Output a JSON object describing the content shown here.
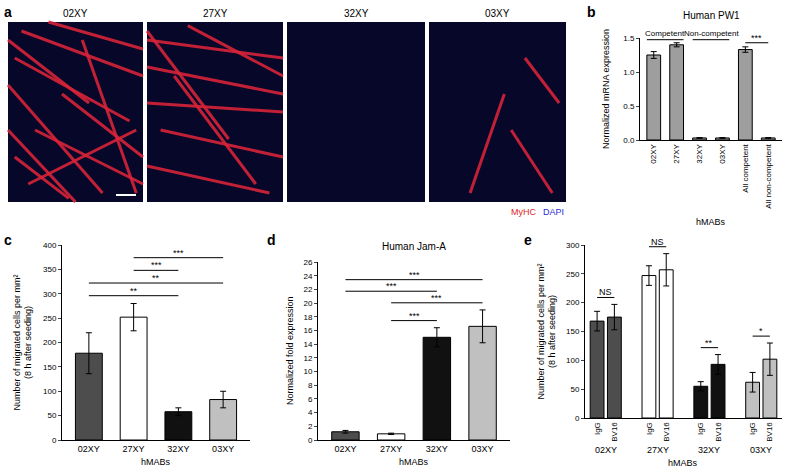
{
  "image_panel": {
    "panel": "a",
    "type": "image",
    "labels": [
      "02XY",
      "27XY",
      "32XY",
      "03XY"
    ],
    "stains": [
      {
        "text": "MyHC",
        "color": "#e02424"
      },
      {
        "text": "DAPI",
        "color": "#2b2bd6"
      }
    ]
  },
  "chart_data": [
    {
      "panel": "b",
      "type": "bar",
      "title": "Human PW1",
      "x_label": "hMABs",
      "y_label": [
        "Normalized mRNA expression"
      ],
      "categories": [
        "02XY",
        "27XY",
        "32XY",
        "03XY",
        "All competent",
        "All non-competent"
      ],
      "values": [
        1.25,
        1.4,
        0.03,
        0.03,
        1.33,
        0.03
      ],
      "errors": [
        0.05,
        0.03,
        0.005,
        0.005,
        0.04,
        0.005
      ],
      "color": "#9e9e9e",
      "ylim": [
        0,
        1.5
      ],
      "yticks": [
        {
          "value": 0,
          "label": "0.0"
        },
        {
          "value": 0.5,
          "label": "0.5"
        },
        {
          "value": 1,
          "label": "1.0"
        },
        {
          "value": 1.5,
          "label": "1.5"
        }
      ],
      "brackets": [
        {
          "from": "02XY",
          "to": "27XY",
          "label": "Competent"
        },
        {
          "from": "32XY",
          "to": "03XY",
          "label": "Non-competent"
        }
      ],
      "significance": [
        {
          "from": "All competent",
          "to": "All non-competent",
          "label": "***"
        }
      ]
    },
    {
      "panel": "c",
      "type": "bar",
      "x_label": "hMABs",
      "y_label": [
        "Number of migrated cells per mm²",
        "(8 h after seeding)"
      ],
      "categories": [
        "02XY",
        "27XY",
        "32XY",
        "03XY"
      ],
      "values": [
        178,
        252,
        58,
        83
      ],
      "errors": [
        42,
        28,
        8,
        17
      ],
      "colors": [
        "#4d4d4d",
        "#ffffff",
        "#111111",
        "#c0c0c0"
      ],
      "ylim": [
        0,
        400
      ],
      "yticks": [
        0,
        50,
        100,
        150,
        200,
        250,
        300,
        350,
        400
      ],
      "significance": [
        {
          "from": "27XY",
          "to": "03XY",
          "label": "***"
        },
        {
          "from": "27XY",
          "to": "32XY",
          "label": "***"
        },
        {
          "from": "02XY",
          "to": "03XY",
          "label": "**"
        },
        {
          "from": "02XY",
          "to": "32XY",
          "label": "**"
        }
      ]
    },
    {
      "panel": "d",
      "type": "bar",
      "title": "Human Jam-A",
      "x_label": "hMABs",
      "y_label": [
        "Normalized fold expression"
      ],
      "categories": [
        "02XY",
        "27XY",
        "32XY",
        "03XY"
      ],
      "values": [
        1.2,
        0.9,
        15,
        16.6
      ],
      "errors": [
        0.2,
        0.1,
        1.4,
        2.4
      ],
      "colors": [
        "#4d4d4d",
        "#ffffff",
        "#111111",
        "#c0c0c0"
      ],
      "ylim": [
        0,
        26
      ],
      "yticks": [
        0,
        2,
        4,
        6,
        8,
        10,
        12,
        14,
        16,
        18,
        20,
        22,
        24,
        26
      ],
      "significance": [
        {
          "from": "02XY",
          "to": "03XY",
          "label": "***"
        },
        {
          "from": "02XY",
          "to": "32XY",
          "label": "***"
        },
        {
          "from": "27XY",
          "to": "03XY",
          "label": "***"
        },
        {
          "from": "27XY",
          "to": "32XY",
          "label": "***"
        }
      ]
    },
    {
      "panel": "e",
      "type": "grouped_bar",
      "x_label": "hMABs",
      "y_label": [
        "Number of migrated cells per mm²",
        "(8 h after seeding)"
      ],
      "categories": [
        "02XY",
        "27XY",
        "32XY",
        "03XY"
      ],
      "series": [
        {
          "name": "IgG",
          "values": [
            168,
            247,
            55,
            62
          ],
          "errors": [
            17,
            17,
            8,
            17
          ]
        },
        {
          "name": "BV16",
          "values": [
            175,
            257,
            93,
            102
          ],
          "errors": [
            22,
            28,
            17,
            28
          ]
        }
      ],
      "colors": [
        "#4d4d4d",
        "#ffffff",
        "#111111",
        "#c0c0c0"
      ],
      "ylim": [
        0,
        300
      ],
      "yticks": [
        0,
        50,
        100,
        150,
        200,
        250,
        300
      ],
      "significance": [
        {
          "category": "02XY",
          "label": "NS"
        },
        {
          "category": "27XY",
          "label": "NS"
        },
        {
          "category": "32XY",
          "label": "**"
        },
        {
          "category": "03XY",
          "label": "*"
        }
      ]
    }
  ]
}
